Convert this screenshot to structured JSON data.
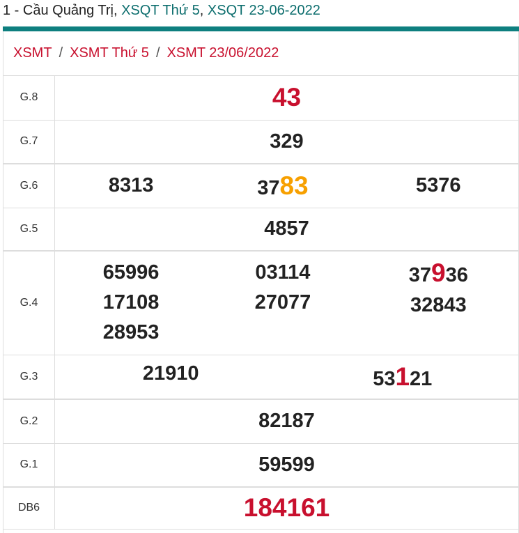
{
  "header": {
    "prefix": "1 - Cầu Quảng Trị, ",
    "link1": "XSQT Thứ 5",
    "comma": ", ",
    "link2": "XSQT 23-06-2022"
  },
  "breadcrumb": [
    "XSMT",
    "XSMT Thứ 5",
    "XSMT 23/06/2022"
  ],
  "breadcrumb_sep": "/",
  "prizes": {
    "g8": {
      "label": "G.8",
      "value": "43"
    },
    "g7": {
      "label": "G.7",
      "value": "329"
    },
    "g6": {
      "label": "G.6",
      "values": [
        "8313",
        {
          "pre": "37",
          "hl": "83",
          "post": ""
        },
        "5376"
      ]
    },
    "g5": {
      "label": "G.5",
      "value": "4857"
    },
    "g4": {
      "label": "G.4",
      "col1": [
        "65996",
        "17108",
        "28953"
      ],
      "col2": [
        "03114",
        "27077"
      ],
      "col3": [
        {
          "pre": "37",
          "hl": "9",
          "post": "36"
        },
        "32843"
      ]
    },
    "g3": {
      "label": "G.3",
      "values": [
        "21910",
        {
          "pre": "53",
          "hl": "1",
          "post": "21"
        }
      ]
    },
    "g2": {
      "label": "G.2",
      "value": "82187"
    },
    "g1": {
      "label": "G.1",
      "value": "59599"
    },
    "db": {
      "label": "DB6",
      "value": "184161"
    }
  },
  "colors": {
    "teal": "#0e7f7f",
    "red": "#c8102e",
    "orange": "#f7a000"
  }
}
